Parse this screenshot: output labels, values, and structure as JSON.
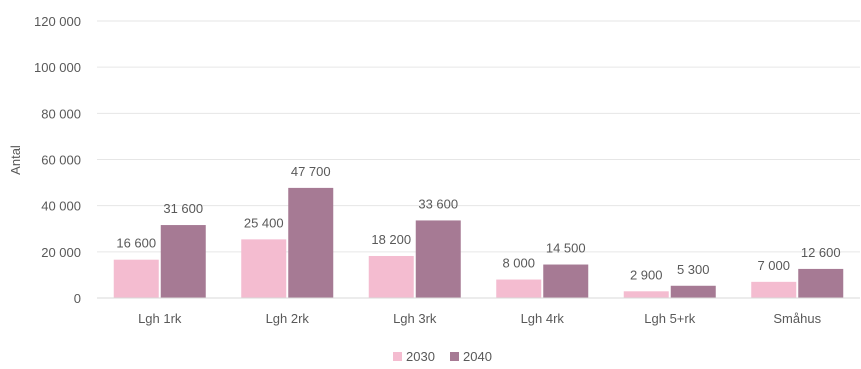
{
  "chart_data": {
    "type": "bar",
    "ylabel": "Antal",
    "ylim": [
      0,
      120000
    ],
    "ytick_labels": [
      "0",
      "20 000",
      "40 000",
      "60 000",
      "80 000",
      "100 000",
      "120 000"
    ],
    "ytick_values": [
      0,
      20000,
      40000,
      60000,
      80000,
      100000,
      120000
    ],
    "grid": true,
    "legend_position": "bottom",
    "categories": [
      "Lgh 1rk",
      "Lgh 2rk",
      "Lgh 3rk",
      "Lgh 4rk",
      "Lgh 5+rk",
      "Småhus"
    ],
    "series": [
      {
        "name": "2030",
        "color": "#f4bcd0",
        "values": [
          16600,
          25400,
          18200,
          8000,
          2900,
          7000
        ],
        "labels": [
          "16 600",
          "25 400",
          "18 200",
          "8 000",
          "2 900",
          "7 000"
        ]
      },
      {
        "name": "2040",
        "color": "#a67a94",
        "values": [
          31600,
          47700,
          33600,
          14500,
          5300,
          12600
        ],
        "labels": [
          "31 600",
          "47 700",
          "33 600",
          "14 500",
          "5 300",
          "12 600"
        ]
      }
    ]
  }
}
